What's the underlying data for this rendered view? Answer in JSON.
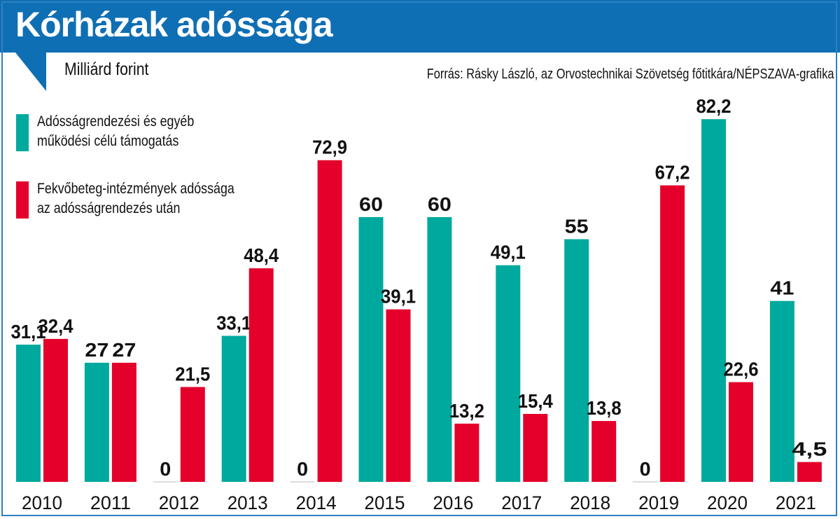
{
  "header": {
    "title": "Kórházak adóssága",
    "unit": "Milliárd forint",
    "source": "Forrás: Rásky László, az Orvostechnikai Szövetség főtitkára/NÉPSZAVA-grafika"
  },
  "colors": {
    "header_bg": "#0f6fb4",
    "support": "#00a99d",
    "debt": "#e4002b"
  },
  "chart_data": {
    "type": "bar",
    "title": "Kórházak adóssága",
    "subtitle": "Milliárd forint",
    "xlabel": "",
    "ylabel": "Milliárd forint",
    "ylim": [
      0,
      85
    ],
    "grid": false,
    "legend_position": "top-left",
    "categories": [
      "2010",
      "2011",
      "2012",
      "2013",
      "2014",
      "2015",
      "2016",
      "2017",
      "2018",
      "2019",
      "2020",
      "2021"
    ],
    "series": [
      {
        "name": "Adósságrendezési és egyéb működési célú támogatás",
        "legend_lines": [
          "Adósságrendezési és egyéb",
          "működési célú támogatás"
        ],
        "color": "#00a99d",
        "values": [
          31.1,
          27,
          0,
          33.1,
          0,
          60,
          60,
          49.1,
          55,
          0,
          82.2,
          41
        ],
        "labels": [
          "31,1",
          "27",
          "0",
          "33,1",
          "0",
          "60",
          "60",
          "49,1",
          "55",
          "0",
          "82,2",
          "41"
        ]
      },
      {
        "name": "Fekvőbeteg-intézmények adóssága az adósságrendezés után",
        "legend_lines": [
          "Fekvőbeteg-intézmények adóssága",
          "az adósságrendezés után"
        ],
        "color": "#e4002b",
        "values": [
          32.4,
          27,
          21.5,
          48.4,
          72.9,
          39.1,
          13.2,
          15.4,
          13.8,
          67.2,
          22.6,
          4.5
        ],
        "labels": [
          "32,4",
          "27",
          "21,5",
          "48,4",
          "72,9",
          "39,1",
          "13,2",
          "15,4",
          "13,8",
          "67,2",
          "22,6",
          "4,5"
        ]
      }
    ]
  }
}
